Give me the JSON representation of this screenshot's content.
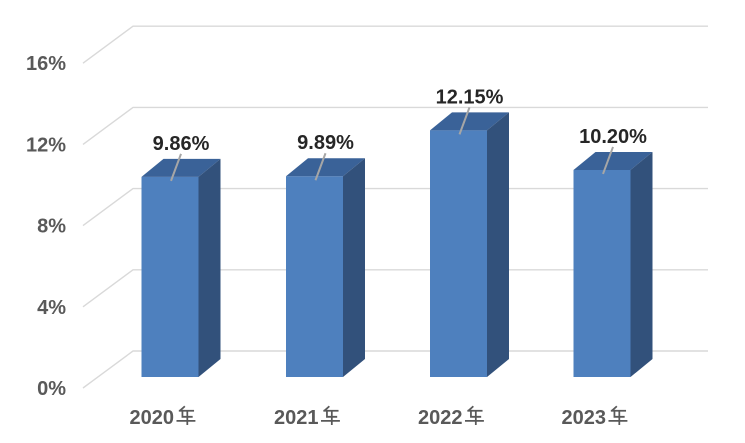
{
  "chart_data": {
    "type": "bar",
    "style": "3d-column",
    "title": "",
    "xlabel": "",
    "ylabel": "",
    "categories": [
      "2020年",
      "2021年",
      "2022年",
      "2023年"
    ],
    "values": [
      9.86,
      9.89,
      12.15,
      10.2
    ],
    "value_labels": [
      "9.86%",
      "9.89%",
      "12.15%",
      "10.20%"
    ],
    "ytick_labels": [
      "0%",
      "4%",
      "8%",
      "12%",
      "16%"
    ],
    "ytick_values": [
      0,
      4,
      8,
      12,
      16
    ],
    "ylim": [
      0,
      16
    ],
    "grid": true,
    "legend": false,
    "colors": {
      "bar_front": "#4E80BE",
      "bar_top": "#3A6298",
      "bar_side": "#32517B",
      "gridline": "#D9D9D9",
      "leader_line": "#A6A6A6",
      "axis_text": "#595959",
      "data_label_text": "#262626",
      "background": "#FFFFFF"
    }
  }
}
